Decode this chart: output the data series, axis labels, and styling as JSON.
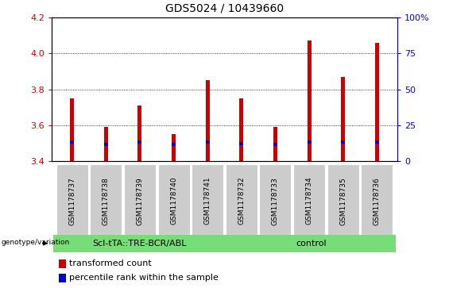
{
  "title": "GDS5024 / 10439660",
  "samples": [
    "GSM1178737",
    "GSM1178738",
    "GSM1178739",
    "GSM1178740",
    "GSM1178741",
    "GSM1178732",
    "GSM1178733",
    "GSM1178734",
    "GSM1178735",
    "GSM1178736"
  ],
  "red_values": [
    3.75,
    3.59,
    3.71,
    3.55,
    3.85,
    3.75,
    3.59,
    4.07,
    3.87,
    4.06
  ],
  "blue_values": [
    3.505,
    3.495,
    3.505,
    3.495,
    3.505,
    3.497,
    3.495,
    3.508,
    3.505,
    3.508
  ],
  "ymin": 3.4,
  "ymax": 4.2,
  "y2min": 0,
  "y2max": 100,
  "yticks": [
    3.4,
    3.6,
    3.8,
    4.0,
    4.2
  ],
  "y2ticks": [
    0,
    25,
    50,
    75,
    100
  ],
  "y2ticklabels": [
    "0",
    "25",
    "50",
    "75",
    "100%"
  ],
  "group1_label": "Scl-tTA::TRE-BCR/ABL",
  "group2_label": "control",
  "group1_count": 5,
  "group2_count": 5,
  "genotype_label": "genotype/variation",
  "legend_red": "transformed count",
  "legend_blue": "percentile rank within the sample",
  "bar_width": 0.12,
  "bar_bottom": 3.4,
  "blue_bar_height": 0.018,
  "red_color": "#cc0000",
  "blue_color": "#0000cc",
  "group_bg": "#77dd77",
  "tick_bg": "#cccccc",
  "title_fontsize": 10,
  "tick_fontsize": 8,
  "legend_fontsize": 8,
  "sample_fontsize": 6.5,
  "group_fontsize": 8
}
